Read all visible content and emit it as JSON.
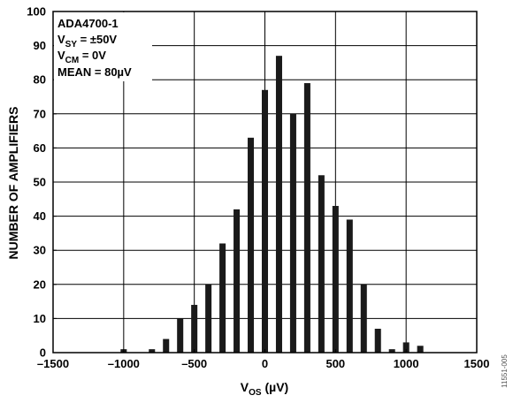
{
  "chart_data": {
    "type": "bar",
    "xlabel_main": "V",
    "xlabel_sub": "OS",
    "xlabel_unit": " (µV)",
    "ylabel": "NUMBER OF AMPLIFIERS",
    "xlim": [
      -1500,
      1500
    ],
    "ylim": [
      0,
      100
    ],
    "xticks": [
      "–1500",
      "–1000",
      "–500",
      "0",
      "500",
      "1000",
      "1500"
    ],
    "xtick_values": [
      -1500,
      -1000,
      -500,
      0,
      500,
      1000,
      1500
    ],
    "yticks": [
      "0",
      "10",
      "20",
      "30",
      "40",
      "50",
      "60",
      "70",
      "80",
      "90",
      "100"
    ],
    "ytick_values": [
      0,
      10,
      20,
      30,
      40,
      50,
      60,
      70,
      80,
      90,
      100
    ],
    "grid": true,
    "bin_width": 100,
    "x": [
      -1000,
      -800,
      -700,
      -600,
      -500,
      -400,
      -300,
      -200,
      -100,
      0,
      100,
      200,
      300,
      400,
      500,
      600,
      700,
      800,
      900,
      1000,
      1100
    ],
    "values": [
      1,
      1,
      4,
      10,
      14,
      20,
      32,
      42,
      63,
      77,
      87,
      70,
      79,
      52,
      43,
      39,
      20,
      7,
      1,
      3,
      2
    ],
    "legend": {
      "line1": "ADA4700-1",
      "line2_main": "V",
      "line2_sub": "SY",
      "line2_rest": " = ±50V",
      "line3_main": "V",
      "line3_sub": "CM",
      "line3_rest": " = 0V",
      "line4": "MEAN = 80µV"
    },
    "figure_id": "11551-005"
  }
}
